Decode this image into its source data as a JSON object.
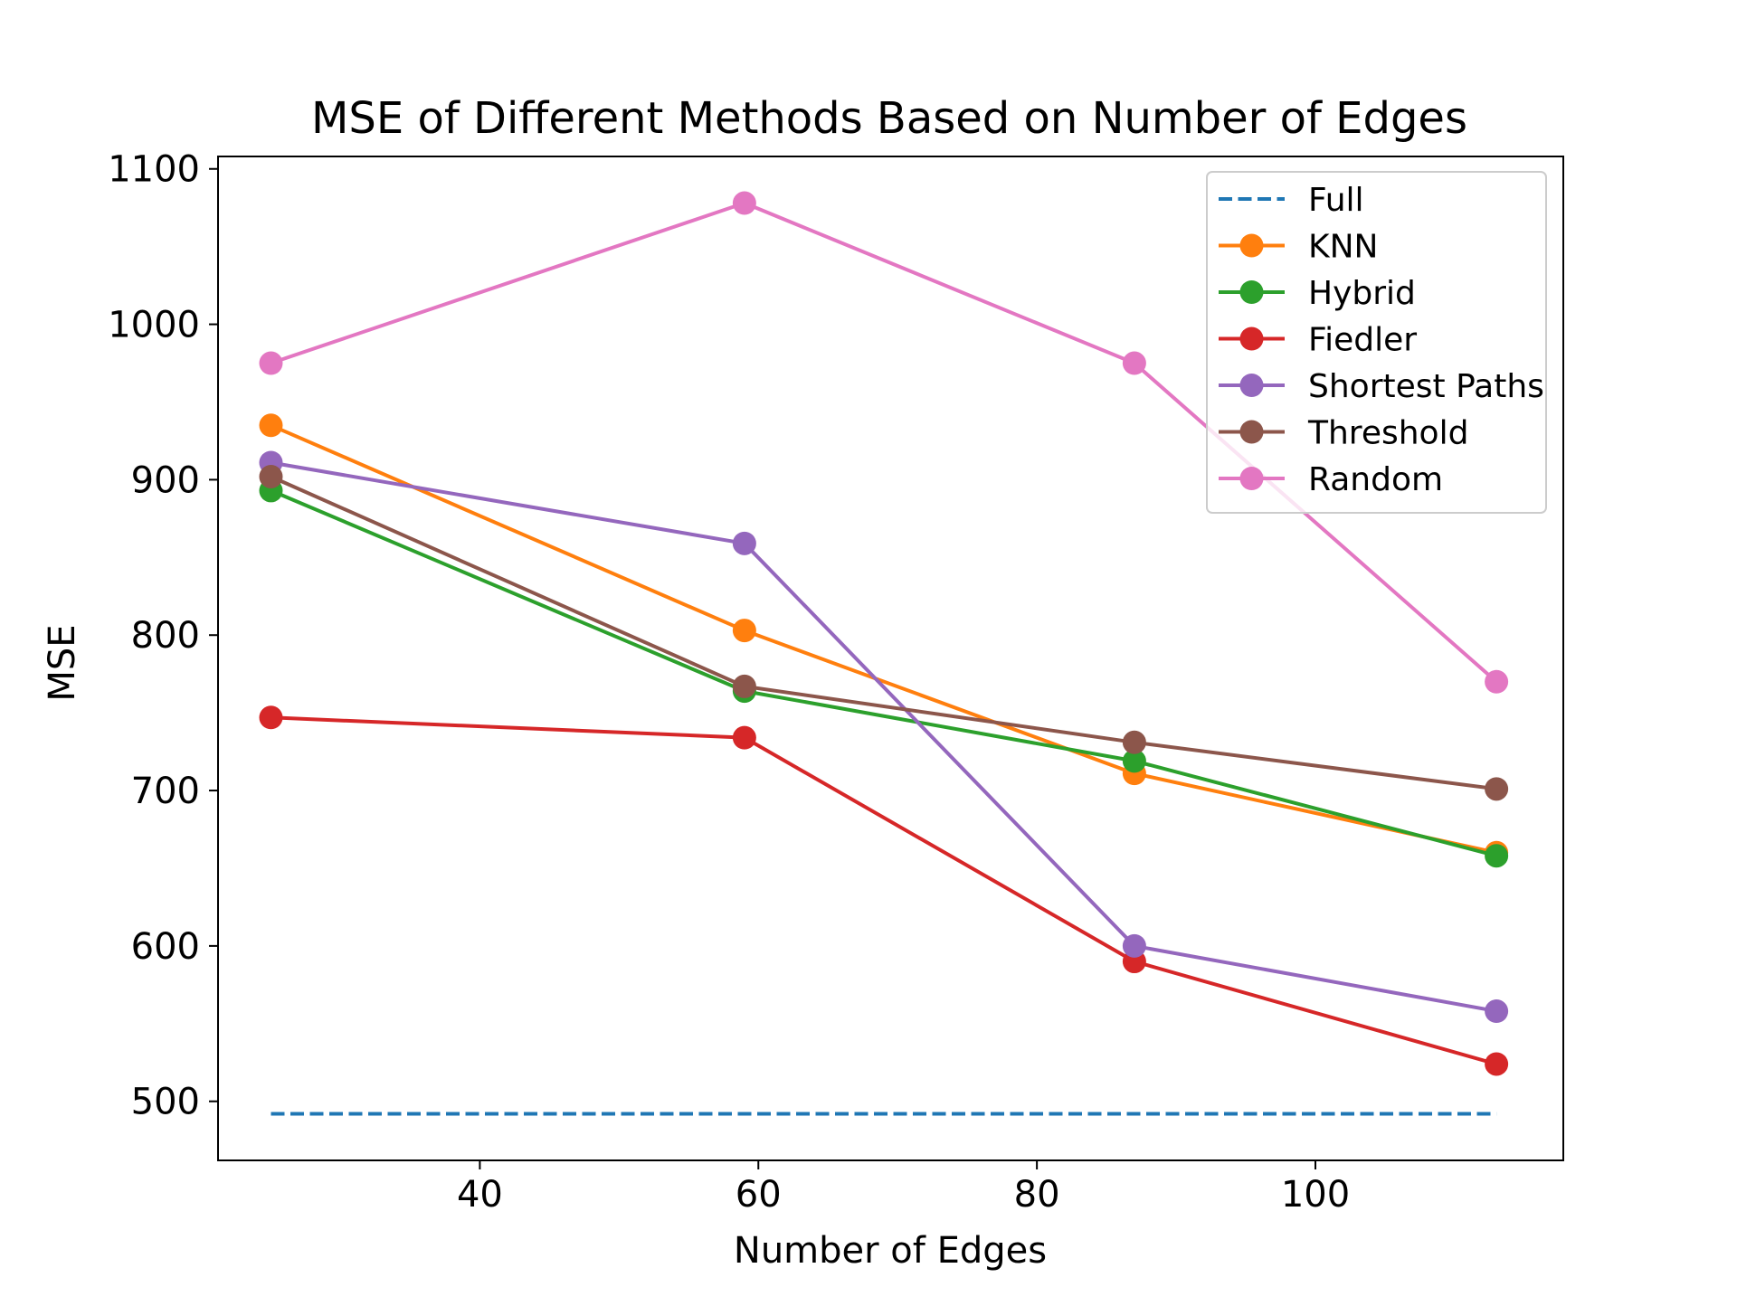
{
  "chart_data": {
    "type": "line",
    "title": "MSE of Different Methods Based on Number of Edges",
    "xlabel": "Number of Edges",
    "ylabel": "MSE",
    "xlim": [
      21.2,
      117.8
    ],
    "ylim": [
      462,
      1108
    ],
    "xticks": [
      40,
      60,
      80,
      100
    ],
    "yticks": [
      500,
      600,
      700,
      800,
      900,
      1000,
      1100
    ],
    "x": [
      25,
      59,
      87,
      113
    ],
    "legend_position": "top-right",
    "series": [
      {
        "name": "Full",
        "color": "#1f77b4",
        "style": "dashed",
        "marker": false,
        "values": [
          492,
          492,
          492,
          492
        ]
      },
      {
        "name": "KNN",
        "color": "#ff7f0e",
        "style": "solid",
        "marker": true,
        "values": [
          935,
          803,
          711,
          660
        ]
      },
      {
        "name": "Hybrid",
        "color": "#2ca02c",
        "style": "solid",
        "marker": true,
        "values": [
          893,
          764,
          719,
          658
        ]
      },
      {
        "name": "Fiedler",
        "color": "#d62728",
        "style": "solid",
        "marker": true,
        "values": [
          747,
          734,
          590,
          524
        ]
      },
      {
        "name": "Shortest Paths",
        "color": "#9467bd",
        "style": "solid",
        "marker": true,
        "values": [
          911,
          859,
          600,
          558
        ]
      },
      {
        "name": "Threshold",
        "color": "#8c564b",
        "style": "solid",
        "marker": true,
        "values": [
          902,
          767,
          731,
          701
        ]
      },
      {
        "name": "Random",
        "color": "#e377c2",
        "style": "solid",
        "marker": true,
        "values": [
          975,
          1078,
          975,
          770
        ]
      }
    ]
  }
}
